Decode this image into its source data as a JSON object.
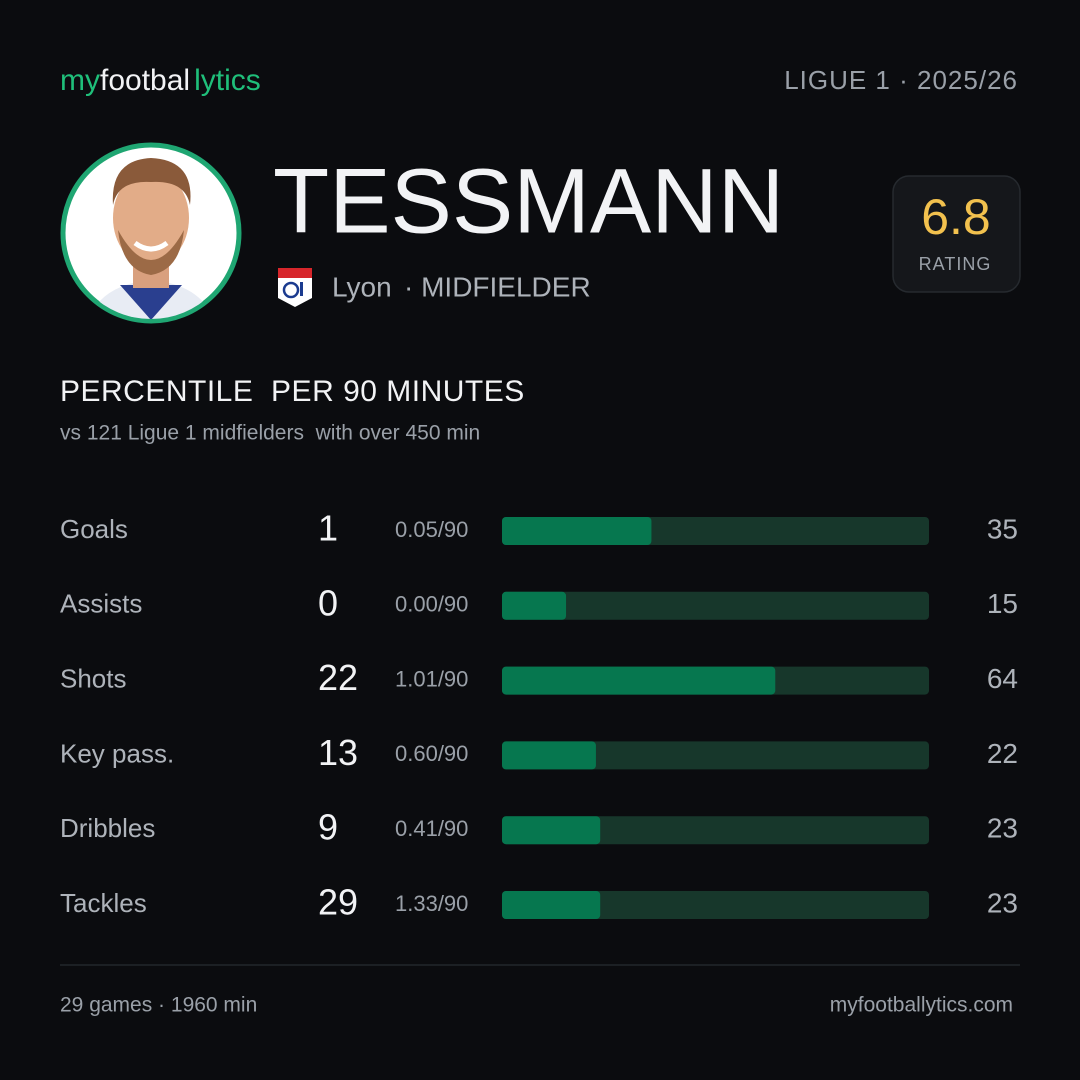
{
  "header": {
    "brand": [
      "my",
      "footbal",
      "lytics"
    ],
    "league": "LIGUE 1 · 2025/26"
  },
  "player": {
    "name": "TESSMANN",
    "club": "Lyon",
    "position": "· MIDFIELDER",
    "rating": 6.8,
    "rating_label": "RATING"
  },
  "section": {
    "title": "PERCENTILE  PER 90 MINUTES",
    "subtitle": "vs 121 Ligue 1 midfielders  with over 450 min"
  },
  "percentile_range": [
    0,
    100
  ],
  "stats": [
    {
      "label": "Goals",
      "total": 1,
      "per90": "0.05/90",
      "percentile": 35
    },
    {
      "label": "Assists",
      "total": 0,
      "per90": "0.00/90",
      "percentile": 15
    },
    {
      "label": "Shots",
      "total": 22,
      "per90": "1.01/90",
      "percentile": 64
    },
    {
      "label": "Key pass.",
      "total": 13,
      "per90": "0.60/90",
      "percentile": 22
    },
    {
      "label": "Dribbles",
      "total": 9,
      "per90": "0.41/90",
      "percentile": 23
    },
    {
      "label": "Tackles",
      "total": 29,
      "per90": "1.33/90",
      "percentile": 23
    }
  ],
  "footer": {
    "summary": "29 games · 1960 min",
    "site": "myfootballytics.com"
  }
}
